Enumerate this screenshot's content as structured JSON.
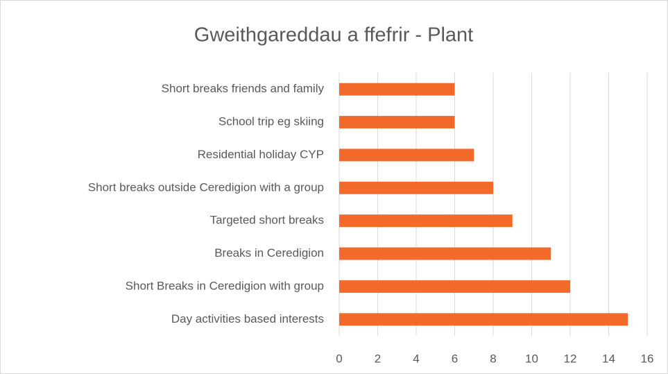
{
  "chart_data": {
    "type": "bar",
    "orientation": "horizontal",
    "title": "Gweithgareddau a ffefrir - Plant",
    "categories": [
      "Short breaks friends and family",
      "School trip eg skiing",
      "Residential holiday CYP",
      "Short breaks outside Ceredigion with a group",
      "Targeted short breaks",
      "Breaks in Ceredigion",
      "Short Breaks in Ceredigion with group",
      "Day activities based interests"
    ],
    "values": [
      6,
      6,
      7,
      8,
      9,
      11,
      12,
      15
    ],
    "color": "#f26b2a",
    "xlim": [
      0,
      16
    ],
    "xticks": [
      0,
      2,
      4,
      6,
      8,
      10,
      12,
      14,
      16
    ],
    "grid": true
  }
}
